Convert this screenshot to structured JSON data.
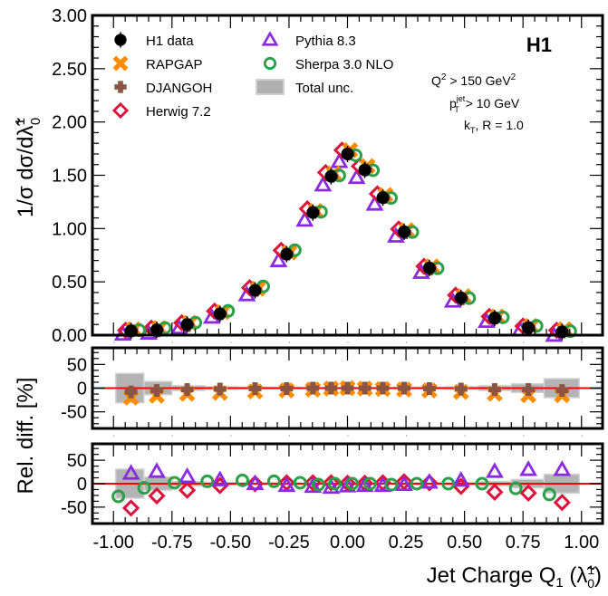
{
  "chart_data": {
    "type": "scatter",
    "title": "",
    "experiment_label": "H1",
    "cuts": {
      "line1": {
        "base": "Q",
        "sup": "2",
        "rest": " > 150 GeV",
        "sup2": "2"
      },
      "line2": {
        "base": "p",
        "sup": "jet",
        "sub": "T",
        "rest": " > 10 GeV"
      },
      "line3": {
        "base": "k",
        "sub": "T",
        "rest": ", R = 1.0"
      }
    },
    "xlabel": "Jet Charge Q₁ (λ̃₀¹)",
    "xlabel_parts": {
      "main": "Jet Charge Q",
      "sub": "1",
      "paren_open": " (",
      "lambda": "λ̃",
      "sup": "1",
      "sub2": "0",
      "paren_close": ")"
    },
    "ylabel_main": "1/σ dσ/dλ̃₀¹",
    "ylabel_parts": {
      "main": "1/σ dσ/d",
      "lambda": "λ̃",
      "sup": "1",
      "sub": "0"
    },
    "ylabel_ratio": "Rel. diff. [%]",
    "xlim": [
      -1.09,
      1.09
    ],
    "ylim": [
      0,
      3.0
    ],
    "ratio_ylim": [
      -85,
      85
    ],
    "xticks": [
      "-1.00",
      "-0.75",
      "-0.50",
      "-0.25",
      "0.00",
      "0.25",
      "0.50",
      "0.75",
      "1.00"
    ],
    "xtick_values": [
      -1.0,
      -0.75,
      -0.5,
      -0.25,
      0.0,
      0.25,
      0.5,
      0.75,
      1.0
    ],
    "yticks": [
      "0.00",
      "0.50",
      "1.00",
      "1.50",
      "2.00",
      "2.50",
      "3.00"
    ],
    "ytick_values": [
      0,
      0.5,
      1.0,
      1.5,
      2.0,
      2.5,
      3.0
    ],
    "ratio_yticks": [
      "50",
      "0",
      "-50"
    ],
    "ratio_ytick_values": [
      50,
      0,
      -50
    ],
    "legend": {
      "placement": "top-left",
      "entries": [
        {
          "name": "H1 data",
          "marker": "filled-circle",
          "color": "#000000"
        },
        {
          "name": "RAPGAP",
          "marker": "x-cross",
          "color": "#ff8c00"
        },
        {
          "name": "DJANGOH",
          "marker": "plus-cross",
          "color": "#8b5444"
        },
        {
          "name": "Herwig 7.2",
          "marker": "open-diamond",
          "color": "#dc143c"
        },
        {
          "name": "Pythia 8.3",
          "marker": "open-triangle",
          "color": "#8a2be2"
        },
        {
          "name": "Sherpa 3.0 NLO",
          "marker": "open-circle",
          "color": "#2ca048"
        },
        {
          "name": "Total unc.",
          "marker": "box",
          "color": "#b0b0b0"
        }
      ]
    },
    "bins": {
      "x": [
        -0.925,
        -0.815,
        -0.685,
        -0.545,
        -0.395,
        -0.26,
        -0.148,
        -0.07,
        0.0,
        0.074,
        0.151,
        0.242,
        0.35,
        0.485,
        0.629,
        0.773,
        0.917
      ],
      "edges": [
        -0.99,
        -0.87,
        -0.75,
        -0.61,
        -0.47,
        -0.32,
        -0.2,
        -0.1,
        -0.035,
        0.035,
        0.1,
        0.2,
        0.3,
        0.42,
        0.56,
        0.7,
        0.84,
        0.99
      ]
    },
    "series": [
      {
        "name": "H1 data",
        "values": [
          0.04,
          0.05,
          0.1,
          0.2,
          0.42,
          0.76,
          1.15,
          1.49,
          1.7,
          1.55,
          1.29,
          0.97,
          0.63,
          0.35,
          0.16,
          0.07,
          0.03
        ]
      },
      {
        "name": "RAPGAP",
        "values": [
          0.03,
          0.04,
          0.09,
          0.19,
          0.41,
          0.75,
          1.14,
          1.49,
          1.71,
          1.56,
          1.29,
          0.96,
          0.62,
          0.34,
          0.15,
          0.06,
          0.03
        ]
      },
      {
        "name": "DJANGOH",
        "values": [
          0.04,
          0.04,
          0.09,
          0.2,
          0.42,
          0.76,
          1.15,
          1.49,
          1.7,
          1.55,
          1.29,
          0.96,
          0.62,
          0.34,
          0.16,
          0.07,
          0.03
        ]
      },
      {
        "name": "Herwig 7.2",
        "values": [
          0.02,
          0.04,
          0.09,
          0.2,
          0.42,
          0.77,
          1.16,
          1.5,
          1.71,
          1.56,
          1.3,
          0.97,
          0.62,
          0.35,
          0.15,
          0.06,
          0.02
        ]
      },
      {
        "name": "Pythia 8.3",
        "values": [
          0.05,
          0.06,
          0.11,
          0.21,
          0.42,
          0.74,
          1.12,
          1.45,
          1.67,
          1.52,
          1.27,
          0.97,
          0.63,
          0.36,
          0.17,
          0.09,
          0.04
        ]
      },
      {
        "name": "Sherpa 3.0 NLO",
        "values": [
          0.03,
          0.05,
          0.1,
          0.21,
          0.44,
          0.78,
          1.14,
          1.48,
          1.67,
          1.53,
          1.27,
          0.95,
          0.61,
          0.33,
          0.15,
          0.07,
          0.02
        ]
      }
    ],
    "ratio_panel_1": {
      "series": [
        {
          "name": "RAPGAP",
          "values": [
            -20,
            -16,
            -12,
            -10,
            -7,
            -5,
            -3,
            -1,
            0,
            -1,
            -2,
            -3,
            -5,
            -8,
            -12,
            -15,
            -15
          ]
        },
        {
          "name": "DJANGOH",
          "values": [
            -8,
            -5,
            -3,
            -2,
            -1,
            -1,
            0,
            0,
            0,
            0,
            0,
            0,
            -1,
            -2,
            -3,
            -3,
            -5
          ]
        }
      ],
      "total_unc": [
        31,
        14,
        5,
        3,
        2,
        2,
        1,
        1,
        1,
        1,
        1,
        2,
        2,
        3,
        5,
        9,
        20
      ]
    },
    "ratio_panel_2": {
      "series": [
        {
          "name": "Herwig 7.2",
          "values": [
            -52,
            -26,
            -14,
            -4,
            0,
            2,
            2,
            2,
            1,
            1,
            2,
            4,
            2,
            -6,
            -18,
            -20,
            -40
          ]
        },
        {
          "name": "Pythia 8.3",
          "values": [
            22,
            26,
            15,
            8,
            0,
            -4,
            -6,
            -8,
            -5,
            -4,
            -4,
            -2,
            3,
            7,
            26,
            30,
            30
          ]
        },
        {
          "name": "Sherpa 3.0 NLO",
          "values": [
            -27,
            -9,
            2,
            5,
            7,
            5,
            2,
            -2,
            0,
            0,
            0,
            -2,
            0,
            0,
            0,
            -10,
            -23
          ]
        }
      ],
      "total_unc": [
        31,
        14,
        5,
        3,
        2,
        2,
        1,
        1,
        1,
        1,
        1,
        2,
        2,
        3,
        5,
        9,
        20
      ]
    }
  }
}
